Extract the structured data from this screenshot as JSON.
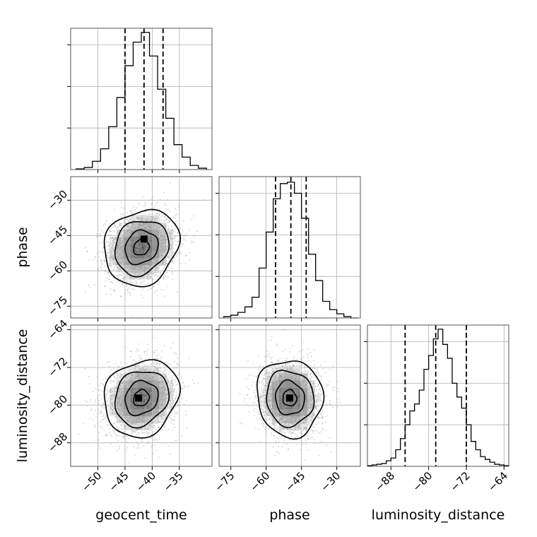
{
  "chart_data": {
    "type": "corner",
    "parameters": [
      "geocent_time",
      "phase",
      "luminosity_distance"
    ],
    "axes": {
      "geocent_time": {
        "range": [
          -55,
          -29
        ],
        "ticks": [
          -50,
          -45,
          -40,
          -35
        ],
        "tick_labels": [
          "−50",
          "−45",
          "−40",
          "−35"
        ]
      },
      "phase": {
        "range": [
          -80,
          -20
        ],
        "ticks": [
          -75,
          -60,
          -45,
          -30
        ],
        "tick_labels": [
          "−75",
          "−60",
          "−45",
          "−30"
        ]
      },
      "luminosity_distance": {
        "range": [
          -93,
          -63
        ],
        "ticks": [
          -88,
          -80,
          -72,
          -64
        ],
        "tick_labels": [
          "−88",
          "−80",
          "−72",
          "−64"
        ]
      }
    },
    "histograms": {
      "geocent_time": {
        "bin_edges": [
          -54,
          -52.5,
          -51,
          -49.5,
          -48,
          -46.5,
          -45,
          -43.5,
          -42,
          -40.5,
          -39,
          -37.5,
          -36,
          -34.5,
          -33,
          -31.5,
          -30
        ],
        "counts": [
          0.005,
          0.015,
          0.06,
          0.15,
          0.31,
          0.52,
          0.75,
          0.92,
          0.99,
          0.82,
          0.58,
          0.37,
          0.18,
          0.09,
          0.03,
          0.01
        ],
        "quantiles": [
          -45,
          -41.5,
          -38
        ]
      },
      "phase": {
        "bin_edges": [
          -78,
          -75,
          -72,
          -69,
          -66,
          -63,
          -60,
          -57,
          -54,
          -51,
          -48,
          -45,
          -42,
          -39,
          -36,
          -33,
          -30,
          -27,
          -24,
          -21
        ],
        "counts": [
          0.01,
          0.02,
          0.04,
          0.08,
          0.15,
          0.36,
          0.62,
          0.86,
          0.97,
          0.98,
          0.9,
          0.72,
          0.46,
          0.27,
          0.12,
          0.06,
          0.03,
          0.01,
          0.0
        ],
        "quantiles": [
          -56,
          -49.5,
          -43
        ]
      },
      "luminosity_distance": {
        "bin_edges": [
          -93,
          -92,
          -91,
          -90,
          -89,
          -88,
          -87,
          -86,
          -85,
          -84,
          -83,
          -82,
          -81,
          -80,
          -79,
          -78,
          -77,
          -76,
          -75,
          -74,
          -73,
          -72,
          -71,
          -70,
          -69,
          -68,
          -67,
          -66,
          -65,
          -64,
          -63
        ],
        "counts": [
          0.005,
          0.01,
          0.015,
          0.02,
          0.04,
          0.06,
          0.12,
          0.2,
          0.3,
          0.4,
          0.45,
          0.55,
          0.7,
          0.8,
          0.92,
          0.99,
          0.88,
          0.78,
          0.6,
          0.5,
          0.42,
          0.3,
          0.18,
          0.12,
          0.07,
          0.05,
          0.03,
          0.015,
          0.01,
          0.005
        ],
        "quantiles": [
          -85,
          -78.5,
          -72
        ]
      }
    },
    "densities": [
      {
        "x": "geocent_time",
        "y": "phase",
        "center": [
          -42,
          -50
        ],
        "sigma": [
          3.2,
          7.5
        ],
        "corr": 0.15,
        "peak": [
          -41.5,
          -46.5
        ]
      },
      {
        "x": "geocent_time",
        "y": "luminosity_distance",
        "center": [
          -42,
          -78.5
        ],
        "sigma": [
          3.2,
          3.8
        ],
        "corr": 0.15,
        "peak": [
          -42.5,
          -78.5
        ]
      },
      {
        "x": "phase",
        "y": "luminosity_distance",
        "center": [
          -50,
          -78.5
        ],
        "sigma": [
          6.5,
          3.8
        ],
        "corr": -0.05,
        "peak": [
          -50,
          -78.5
        ]
      }
    ],
    "grid": true,
    "legend": "none"
  }
}
